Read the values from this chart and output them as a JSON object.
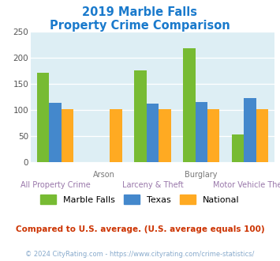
{
  "title_line1": "2019 Marble Falls",
  "title_line2": "Property Crime Comparison",
  "marble_falls": [
    170,
    0,
    175,
    217,
    53
  ],
  "texas": [
    113,
    0,
    111,
    115,
    122
  ],
  "national": [
    101,
    101,
    101,
    101,
    101
  ],
  "arson_national": 101,
  "color_marble": "#77bb33",
  "color_texas": "#4488cc",
  "color_national": "#ffaa22",
  "ylim": [
    0,
    250
  ],
  "yticks": [
    0,
    50,
    100,
    150,
    200,
    250
  ],
  "plot_bg": "#ddeef4",
  "legend_labels": [
    "Marble Falls",
    "Texas",
    "National"
  ],
  "subtitle": "Compared to U.S. average. (U.S. average equals 100)",
  "footer": "© 2024 CityRating.com - https://www.cityrating.com/crime-statistics/",
  "title_color": "#1a7acc",
  "subtitle_color": "#cc3300",
  "footer_color": "#88aacc",
  "label_color_row1": "#777777",
  "label_color_row2": "#9977aa",
  "n_groups": 5,
  "bar_width": 0.25
}
